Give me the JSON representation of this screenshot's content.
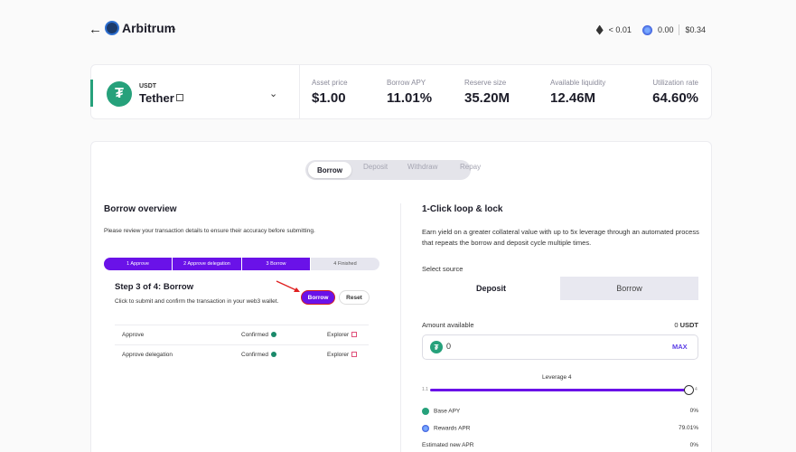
{
  "header": {
    "back_glyph": "←",
    "network_name": "Arbitrum",
    "eth_balance": "< 0.01",
    "token_balance": "0.00",
    "usd_balance": "$0.34"
  },
  "asset": {
    "symbol": "USDT",
    "name": "Tether",
    "stats": [
      {
        "label": "Asset price",
        "value": "$1.00"
      },
      {
        "label": "Borrow APY",
        "value": "11.01%"
      },
      {
        "label": "Reserve size",
        "value": "35.20M"
      },
      {
        "label": "Available liquidity",
        "value": "12.46M"
      },
      {
        "label": "Utilization rate",
        "value": "64.60%"
      }
    ]
  },
  "tabs": [
    "Borrow",
    "Deposit",
    "Withdraw",
    "Repay"
  ],
  "overview": {
    "title": "Borrow overview",
    "description": "Please review your transaction details to ensure their accuracy before submitting.",
    "steps": [
      "1 Approve",
      "2 Approve delegation",
      "3 Borrow",
      "4 Finished"
    ],
    "step_title": "Step 3 of 4: Borrow",
    "step_desc": "Click to submit and confirm the transaction in your web3 wallet.",
    "borrow_button": "Borrow",
    "reset_button": "Reset",
    "rows": [
      {
        "name": "Approve",
        "status": "Confirmed",
        "link": "Explorer"
      },
      {
        "name": "Approve delegation",
        "status": "Confirmed",
        "link": "Explorer"
      }
    ]
  },
  "loop": {
    "title": "1-Click loop & lock",
    "description": "Earn yield on a greater collateral value with up to 5x leverage through an automated process that repeats the borrow and deposit cycle multiple times.",
    "source_label": "Select source",
    "source_options": [
      "Deposit",
      "Borrow"
    ],
    "amount_label": "Amount available",
    "amount_value": "0",
    "amount_unit": "USDT",
    "input_value": "0",
    "max_label": "MAX",
    "leverage_label": "Leverage 4",
    "leverage_min": "1.1",
    "leverage_max": "4",
    "leverage_value": 4,
    "info_rows": [
      {
        "label": "Base APY",
        "value": "0%",
        "icon": "tether-icon"
      },
      {
        "label": "Rewards APR",
        "value": "79.01%",
        "icon": "rewards-icon"
      },
      {
        "label": "Estimated new APR",
        "value": "0%",
        "icon": ""
      }
    ]
  },
  "colors": {
    "accent": "#6a12e8",
    "tether": "#26a17b",
    "max": "#5b3ee6"
  }
}
